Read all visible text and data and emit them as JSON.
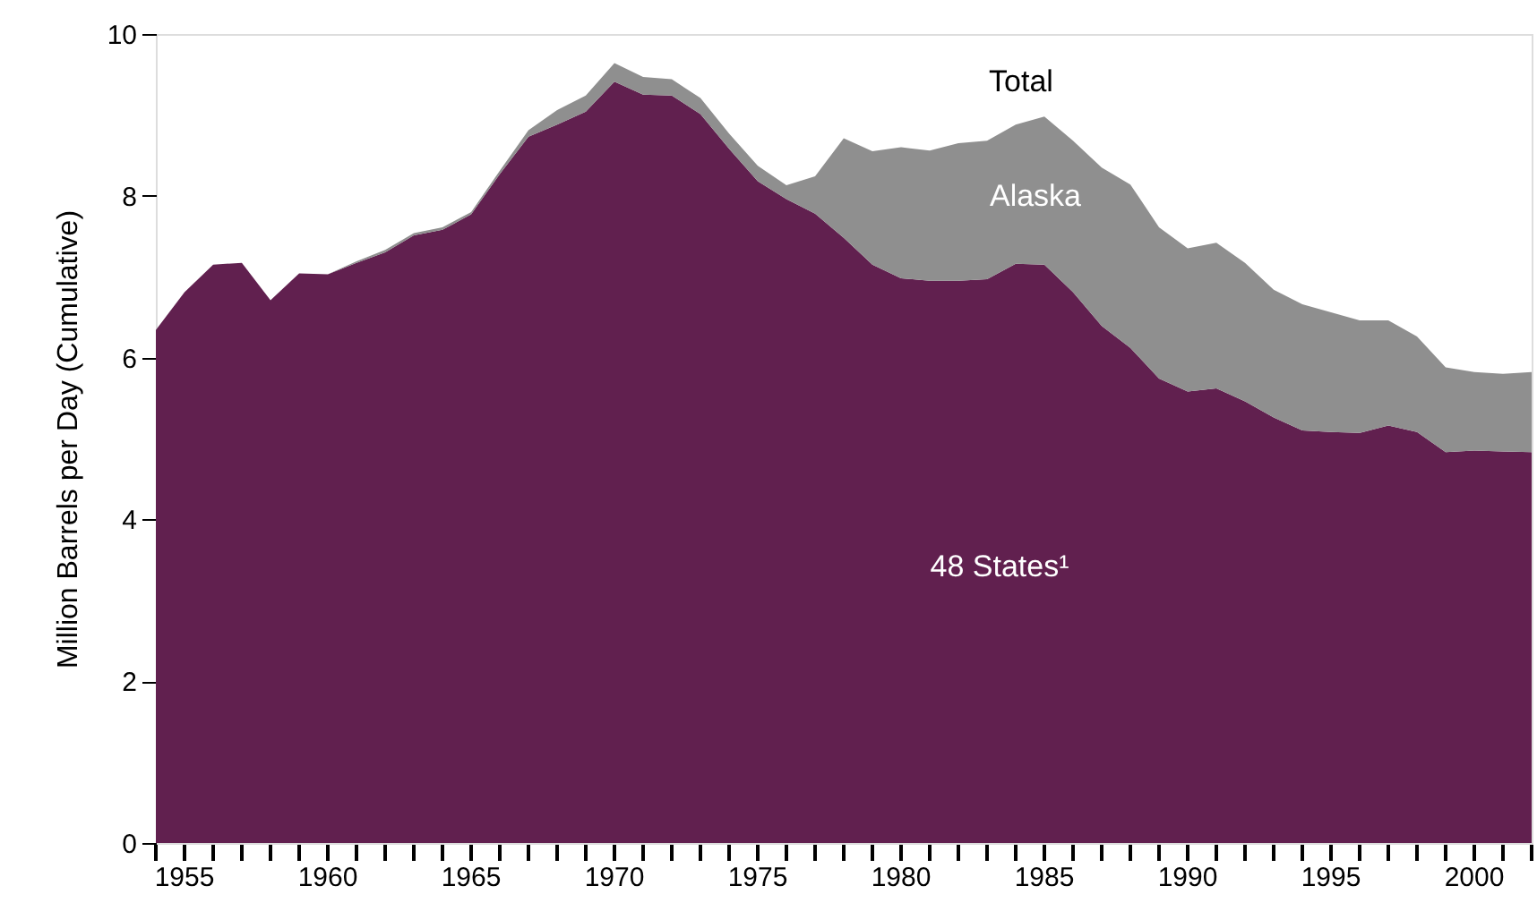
{
  "chart_data": {
    "type": "area",
    "stacked": true,
    "ylabel": "Million Barrels per Day (Cumulative)",
    "x": [
      1954,
      1955,
      1956,
      1957,
      1958,
      1959,
      1960,
      1961,
      1962,
      1963,
      1964,
      1965,
      1966,
      1967,
      1968,
      1969,
      1970,
      1971,
      1972,
      1973,
      1974,
      1975,
      1976,
      1977,
      1978,
      1979,
      1980,
      1981,
      1982,
      1983,
      1984,
      1985,
      1986,
      1987,
      1988,
      1989,
      1990,
      1991,
      1992,
      1993,
      1994,
      1995,
      1996,
      1997,
      1998,
      1999,
      2000,
      2001,
      2002
    ],
    "series": [
      {
        "color": "#61204f",
        "values": [
          6.34,
          6.81,
          7.15,
          7.17,
          6.71,
          7.04,
          7.03,
          7.17,
          7.3,
          7.51,
          7.58,
          7.77,
          8.27,
          8.73,
          8.88,
          9.04,
          9.41,
          9.25,
          9.24,
          9.01,
          8.58,
          8.18,
          7.96,
          7.78,
          7.48,
          7.15,
          6.98,
          6.95,
          6.95,
          6.97,
          7.16,
          7.15,
          6.81,
          6.39,
          6.12,
          5.74,
          5.58,
          5.62,
          5.46,
          5.26,
          5.1,
          5.08,
          5.07,
          5.16,
          5.08,
          4.83,
          4.85,
          4.84,
          4.83
        ]
      },
      {
        "color": "#8f8f8f",
        "values": [
          0,
          0,
          0,
          0,
          0,
          0,
          0,
          0.02,
          0.03,
          0.03,
          0.03,
          0.03,
          0.04,
          0.08,
          0.18,
          0.2,
          0.23,
          0.22,
          0.2,
          0.2,
          0.19,
          0.19,
          0.17,
          0.46,
          1.23,
          1.4,
          1.62,
          1.61,
          1.7,
          1.71,
          1.72,
          1.83,
          1.87,
          1.96,
          2.02,
          1.87,
          1.77,
          1.8,
          1.71,
          1.58,
          1.56,
          1.48,
          1.39,
          1.3,
          1.18,
          1.05,
          0.97,
          0.96,
          0.99
        ]
      }
    ],
    "annotations": [
      "Total",
      "Alaska",
      "48 States¹"
    ],
    "xlim": [
      1954,
      2002
    ],
    "xticks": [
      {
        "value": 1954,
        "label": null
      },
      1955,
      {
        "value": 1956,
        "label": null
      },
      {
        "value": 1957,
        "label": null
      },
      {
        "value": 1958,
        "label": null
      },
      {
        "value": 1959,
        "label": null
      },
      1960,
      {
        "value": 1961,
        "label": null
      },
      {
        "value": 1962,
        "label": null
      },
      {
        "value": 1963,
        "label": null
      },
      {
        "value": 1964,
        "label": null
      },
      1965,
      {
        "value": 1966,
        "label": null
      },
      {
        "value": 1967,
        "label": null
      },
      {
        "value": 1968,
        "label": null
      },
      {
        "value": 1969,
        "label": null
      },
      1970,
      {
        "value": 1971,
        "label": null
      },
      {
        "value": 1972,
        "label": null
      },
      {
        "value": 1973,
        "label": null
      },
      {
        "value": 1974,
        "label": null
      },
      1975,
      {
        "value": 1976,
        "label": null
      },
      {
        "value": 1977,
        "label": null
      },
      {
        "value": 1978,
        "label": null
      },
      {
        "value": 1979,
        "label": null
      },
      1980,
      {
        "value": 1981,
        "label": null
      },
      {
        "value": 1982,
        "label": null
      },
      {
        "value": 1983,
        "label": null
      },
      {
        "value": 1984,
        "label": null
      },
      1985,
      {
        "value": 1986,
        "label": null
      },
      {
        "value": 1987,
        "label": null
      },
      {
        "value": 1988,
        "label": null
      },
      {
        "value": 1989,
        "label": null
      },
      1990,
      {
        "value": 1991,
        "label": null
      },
      {
        "value": 1992,
        "label": null
      },
      {
        "value": 1993,
        "label": null
      },
      {
        "value": 1994,
        "label": null
      },
      1995,
      {
        "value": 1996,
        "label": null
      },
      {
        "value": 1997,
        "label": null
      },
      {
        "value": 1998,
        "label": null
      },
      {
        "value": 1999,
        "label": null
      },
      2000,
      {
        "value": 2001,
        "label": null
      },
      {
        "value": 2002,
        "label": null
      }
    ],
    "ylim": [
      0,
      10
    ],
    "yticks": [
      0,
      2,
      4,
      6,
      8,
      10
    ],
    "grid": false,
    "legend": false
  }
}
